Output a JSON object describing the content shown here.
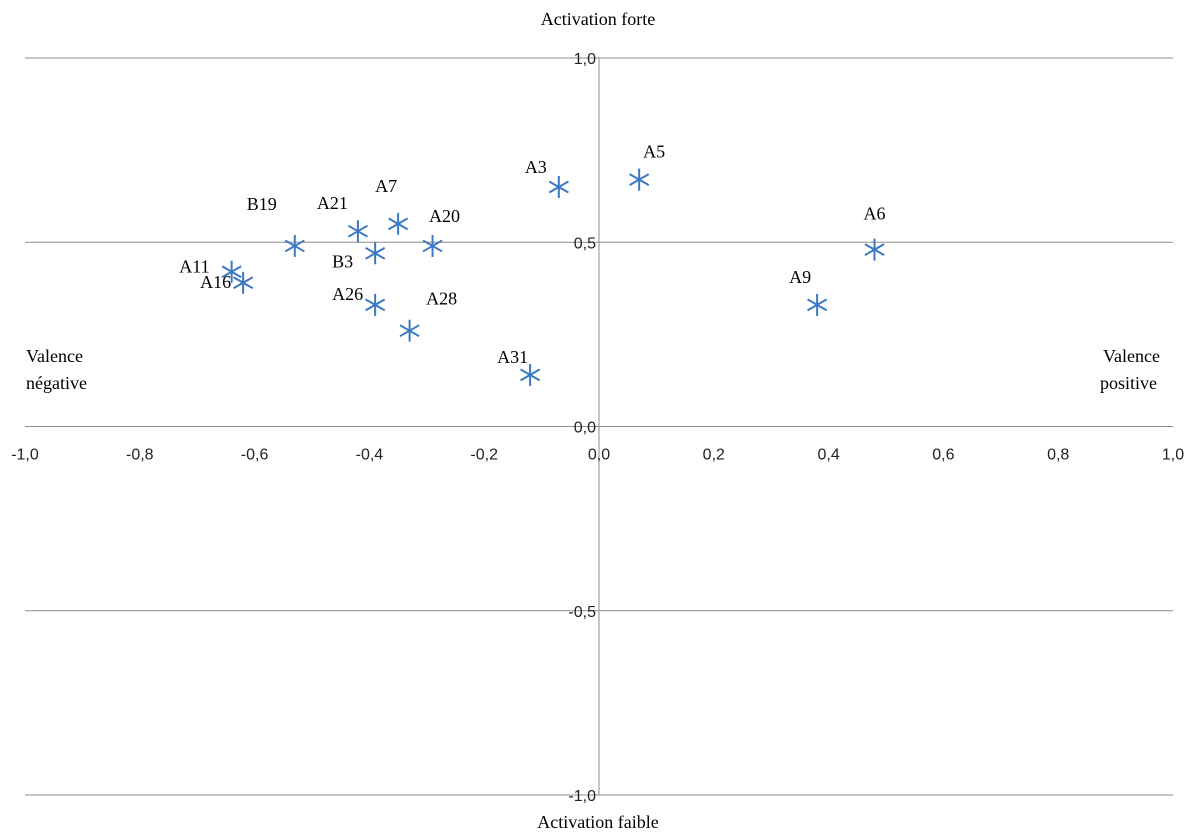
{
  "chart_data": {
    "type": "scatter",
    "title": "",
    "top_label": "Activation forte",
    "bottom_label": "Activation faible",
    "left_label": [
      "Valence",
      "négative"
    ],
    "right_label": [
      "Valence",
      "positive"
    ],
    "xlim": [
      -1.0,
      1.0
    ],
    "ylim": [
      -1.0,
      1.0
    ],
    "x_ticks": [
      "-1,0",
      "-0,8",
      "-0,6",
      "-0,4",
      "-0,2",
      "0,0",
      "0,2",
      "0,4",
      "0,6",
      "0,8",
      "1,0"
    ],
    "y_ticks": [
      "1,0",
      "0,5",
      "0,0",
      "-0,5",
      "-1,0"
    ],
    "gridlines_y": [
      1.0,
      0.5,
      0.0,
      -0.5,
      -1.0
    ],
    "grid": true,
    "marker": "asterisk",
    "marker_color": "#3b78c3",
    "points": [
      {
        "label": "A3",
        "x": -0.07,
        "y": 0.65
      },
      {
        "label": "A5",
        "x": 0.07,
        "y": 0.67
      },
      {
        "label": "A6",
        "x": 0.48,
        "y": 0.48
      },
      {
        "label": "A7",
        "x": -0.35,
        "y": 0.55
      },
      {
        "label": "A9",
        "x": 0.38,
        "y": 0.33
      },
      {
        "label": "A11",
        "x": -0.64,
        "y": 0.42
      },
      {
        "label": "A16",
        "x": -0.62,
        "y": 0.39
      },
      {
        "label": "A20",
        "x": -0.29,
        "y": 0.49
      },
      {
        "label": "A21",
        "x": -0.42,
        "y": 0.53
      },
      {
        "label": "A26",
        "x": -0.39,
        "y": 0.33
      },
      {
        "label": "A28",
        "x": -0.33,
        "y": 0.26
      },
      {
        "label": "A31",
        "x": -0.12,
        "y": 0.14
      },
      {
        "label": "B3",
        "x": -0.39,
        "y": 0.47
      },
      {
        "label": "B19",
        "x": -0.53,
        "y": 0.49
      }
    ]
  }
}
